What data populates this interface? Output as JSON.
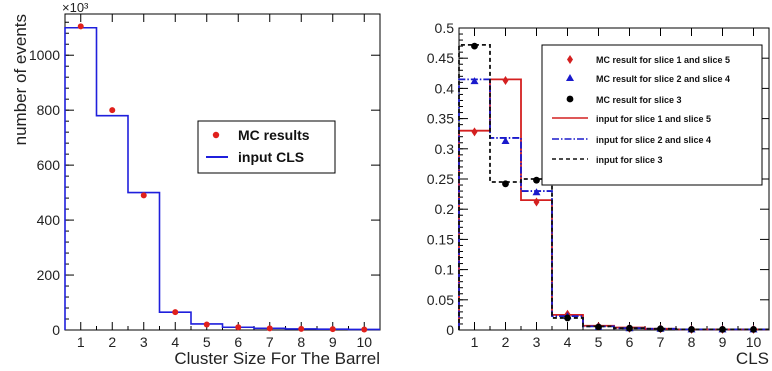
{
  "chart_data": [
    {
      "type": "histogram",
      "xlabel": "Cluster Size For The Barrel",
      "ylabel": "number of events",
      "y_multiplier_label": "×10³",
      "xlim": [
        0.5,
        10.5
      ],
      "ylim": [
        0,
        1150
      ],
      "x_ticks": [
        "1",
        "2",
        "3",
        "4",
        "5",
        "6",
        "7",
        "8",
        "9",
        "10"
      ],
      "y_ticks": [
        "0",
        "200",
        "400",
        "600",
        "800",
        "1000"
      ],
      "grid": false,
      "legend_position": "center-right",
      "legend": [
        "MC results",
        "input CLS"
      ],
      "series": [
        {
          "name": "input CLS",
          "kind": "step",
          "color": "#1f1fdc",
          "x": [
            1,
            2,
            3,
            4,
            5,
            6,
            7,
            8,
            9,
            10
          ],
          "values": [
            1100,
            780,
            500,
            65,
            22,
            10,
            6,
            4,
            3,
            2
          ]
        },
        {
          "name": "MC results",
          "kind": "markers",
          "marker": "circle",
          "color": "#e0201c",
          "x": [
            1,
            2,
            3,
            4,
            5,
            6,
            7,
            8,
            9,
            10
          ],
          "values": [
            1105,
            800,
            490,
            65,
            20,
            10,
            6,
            4,
            3,
            2
          ]
        }
      ]
    },
    {
      "type": "histogram",
      "xlabel": "CLS",
      "ylabel": "",
      "xlim": [
        0.5,
        10.5
      ],
      "ylim": [
        0,
        0.5
      ],
      "x_ticks": [
        "1",
        "2",
        "3",
        "4",
        "5",
        "6",
        "7",
        "8",
        "9",
        "10"
      ],
      "y_ticks": [
        "0",
        "0.05",
        "0.1",
        "0.15",
        "0.2",
        "0.25",
        "0.3",
        "0.35",
        "0.4",
        "0.45",
        "0.5"
      ],
      "grid": false,
      "legend_position": "top-right",
      "legend": [
        "MC result for slice 1 and slice 5",
        "MC result for slice 2 and slice 4",
        "MC result for slice 3",
        "input for slice 1 and slice 5",
        "input for slice 2 and slice 4",
        "input for slice 3"
      ],
      "series": [
        {
          "name": "input for slice 1 and slice 5",
          "kind": "step",
          "style": "solid",
          "color": "#d42020",
          "x": [
            1,
            2,
            3,
            4,
            5,
            6,
            7,
            8,
            9,
            10
          ],
          "values": [
            0.33,
            0.415,
            0.215,
            0.025,
            0.007,
            0.004,
            0.002,
            0.001,
            0.001,
            0.001
          ]
        },
        {
          "name": "input for slice 2 and slice 4",
          "kind": "step",
          "style": "dashdot",
          "color": "#1a1acc",
          "x": [
            1,
            2,
            3,
            4,
            5,
            6,
            7,
            8,
            9,
            10
          ],
          "values": [
            0.415,
            0.318,
            0.23,
            0.023,
            0.006,
            0.003,
            0.002,
            0.001,
            0.001,
            0.001
          ]
        },
        {
          "name": "input for slice 3",
          "kind": "step",
          "style": "dashed",
          "color": "#111111",
          "x": [
            1,
            2,
            3,
            4,
            5,
            6,
            7,
            8,
            9,
            10
          ],
          "values": [
            0.472,
            0.245,
            0.25,
            0.02,
            0.006,
            0.003,
            0.002,
            0.001,
            0.001,
            0.001
          ]
        },
        {
          "name": "MC result for slice 1 and slice 5",
          "kind": "markers",
          "marker": "diamond",
          "color": "#d42020",
          "x": [
            1,
            2,
            3,
            4,
            5,
            6,
            7,
            8,
            9,
            10
          ],
          "values": [
            0.328,
            0.413,
            0.212,
            0.026,
            0.006,
            0.003,
            0.002,
            0.001,
            0.001,
            0.001
          ]
        },
        {
          "name": "MC result for slice 2 and slice 4",
          "kind": "markers",
          "marker": "triangle",
          "color": "#1a1acc",
          "x": [
            1,
            2,
            3,
            4,
            5,
            6,
            7,
            8,
            9,
            10
          ],
          "values": [
            0.412,
            0.313,
            0.228,
            0.023,
            0.005,
            0.003,
            0.002,
            0.001,
            0.001,
            0.001
          ]
        },
        {
          "name": "MC result for slice 3",
          "kind": "markers",
          "marker": "circle",
          "color": "#000000",
          "x": [
            1,
            2,
            3,
            4,
            5,
            6,
            7,
            8,
            9,
            10
          ],
          "values": [
            0.47,
            0.242,
            0.248,
            0.02,
            0.005,
            0.003,
            0.002,
            0.001,
            0.001,
            0.001
          ]
        }
      ]
    }
  ]
}
